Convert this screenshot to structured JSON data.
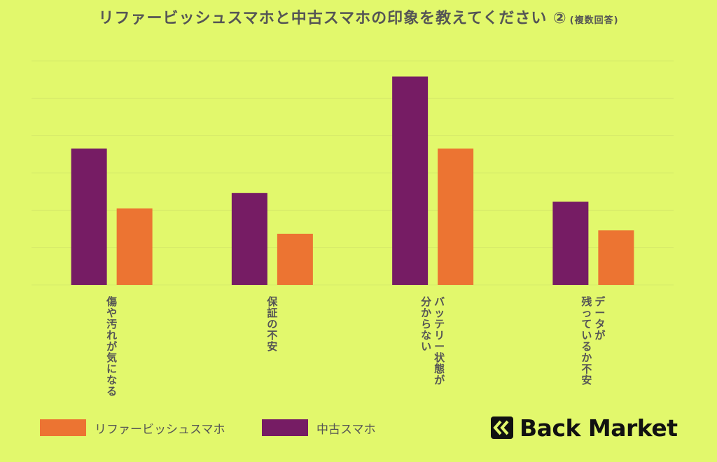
{
  "title": "リファービッシュスマホと中古スマホの印象を教えてください ②",
  "title_note": "(複数回答)",
  "colors": {
    "background": "#e2f86c",
    "refurbished": "#ec7432",
    "used": "#761c64",
    "text": "#555555",
    "grid": "#d6eb6a"
  },
  "legend": {
    "refurbished_label": "リファービッシュスマホ",
    "used_label": "中古スマホ"
  },
  "logo": {
    "text": "Back Market",
    "icon": "back-market-chevron-logo"
  },
  "chart_data": {
    "type": "bar",
    "grouped": true,
    "categories": [
      [
        "傷や汚れが気になる"
      ],
      [
        "保証の不安"
      ],
      [
        "バッテリー状態が",
        "分からない"
      ],
      [
        "データが",
        "残っているか不安"
      ]
    ],
    "series": [
      {
        "name": "中古スマホ",
        "color": "#761c64",
        "values": [
          36.5,
          24.6,
          55.8,
          22.3
        ]
      },
      {
        "name": "リファービッシュスマホ",
        "color": "#ec7432",
        "values": [
          20.5,
          13.7,
          36.5,
          14.6
        ]
      }
    ],
    "ylim": [
      0,
      60
    ],
    "y_gridlines": [
      0,
      10,
      20,
      30,
      40,
      50,
      60
    ],
    "y_tick_labels_shown": false,
    "grid": true,
    "legend_position": "bottom-left",
    "xlabel": "",
    "ylabel": ""
  }
}
